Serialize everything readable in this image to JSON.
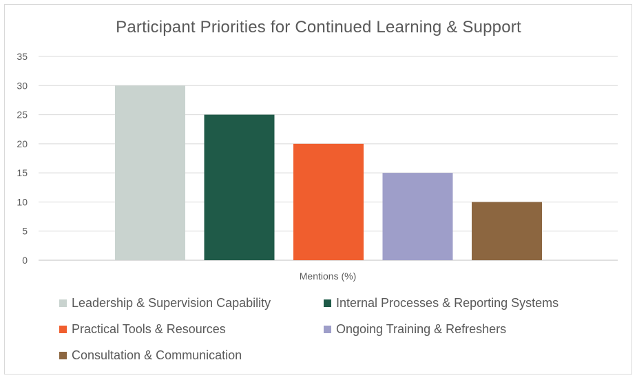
{
  "chart_data": {
    "type": "bar",
    "title": "Participant Priorities for Continued Learning & Support",
    "xlabel": "Mentions (%)",
    "ylabel": "",
    "ylim": [
      0,
      35
    ],
    "yticks": [
      0,
      5,
      10,
      15,
      20,
      25,
      30,
      35
    ],
    "grid": true,
    "legend_position": "bottom",
    "series": [
      {
        "name": "Leadership & Supervision Capability",
        "values": [
          30
        ],
        "color": "#c9d3cf"
      },
      {
        "name": "Internal Processes & Reporting Systems",
        "values": [
          25
        ],
        "color": "#1f5a48"
      },
      {
        "name": "Practical Tools & Resources",
        "values": [
          20
        ],
        "color": "#f05e2e"
      },
      {
        "name": "Ongoing Training & Refreshers",
        "values": [
          15
        ],
        "color": "#9e9ec9"
      },
      {
        "name": "Consultation & Communication",
        "values": [
          10
        ],
        "color": "#8c6640"
      }
    ]
  }
}
